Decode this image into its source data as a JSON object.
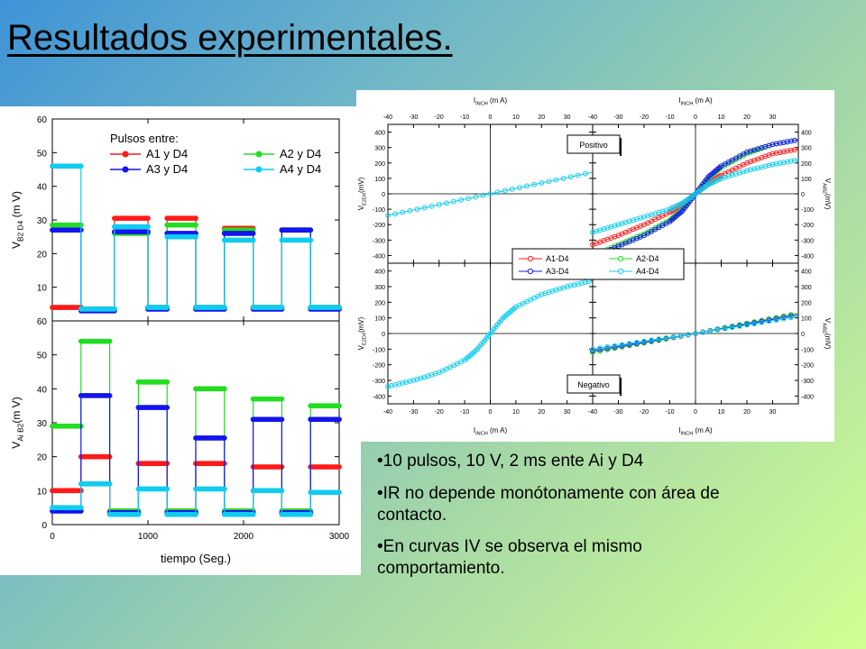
{
  "page": {
    "title": "Resultados experimentales."
  },
  "bullets": [
    "10 pulsos, 10 V, 2 ms ente Ai y D4",
    "IR no depende monótonamente con área de contacto.",
    "En curvas IV se observa el mismo comportamiento."
  ],
  "colors": {
    "A1": "#ff1a1a",
    "A2": "#22dd22",
    "A3": "#1414ee",
    "A4": "#11ccee"
  },
  "chart_data": [
    {
      "type": "line",
      "id": "top-time",
      "xlabel": "",
      "ylabel": "V_{B2 D4} (m V)",
      "ylabel_main": "V",
      "ylabel_sub": "B2 D4",
      "ylabel_tail": " (m V)",
      "xlim": [
        0,
        3000
      ],
      "ylim": [
        0,
        60
      ],
      "xticks": [
        0,
        1000,
        2000,
        3000
      ],
      "yticks": [
        0,
        10,
        20,
        30,
        40,
        50,
        60
      ],
      "ytick_labels": [
        "",
        "10",
        "20",
        "30",
        "40",
        "50",
        "60"
      ],
      "legend": {
        "title": "Pulsos entre:",
        "placement": "top-right",
        "entries": [
          "A1 y D4",
          "A2 y D4",
          "A3 y D4",
          "A4 y D4"
        ]
      },
      "pulses": [
        [
          300,
          600
        ],
        [
          600,
          900
        ],
        [
          900,
          1200
        ],
        [
          1200,
          1500
        ],
        [
          1500,
          1800
        ],
        [
          1800,
          2100
        ],
        [
          2100,
          2400
        ],
        [
          2400,
          2700
        ],
        [
          2700,
          3000
        ]
      ],
      "series": [
        {
          "name": "A1 y D4",
          "color": "#ff1a1a",
          "levels": [
            [
              0,
              300,
              4
            ],
            [
              300,
              650,
              3.5
            ],
            [
              650,
              1000,
              30.5
            ],
            [
              1000,
              1200,
              4
            ],
            [
              1200,
              1500,
              30.5
            ],
            [
              1500,
              1800,
              4
            ],
            [
              1800,
              2100,
              27.5
            ],
            [
              2100,
              2400,
              4
            ],
            [
              2400,
              2700,
              27
            ],
            [
              2700,
              3000,
              4
            ]
          ]
        },
        {
          "name": "A2 y D4",
          "color": "#22dd22",
          "levels": [
            [
              0,
              300,
              28.5
            ],
            [
              300,
              650,
              3.5
            ],
            [
              650,
              1000,
              26
            ],
            [
              1000,
              1200,
              4
            ],
            [
              1200,
              1500,
              28.5
            ],
            [
              1500,
              1800,
              4
            ],
            [
              1800,
              2100,
              27
            ],
            [
              2100,
              2400,
              4
            ],
            [
              2400,
              2700,
              27
            ],
            [
              2700,
              3000,
              4
            ]
          ]
        },
        {
          "name": "A3 y D4",
          "color": "#1414ee",
          "levels": [
            [
              0,
              300,
              27
            ],
            [
              300,
              650,
              3
            ],
            [
              650,
              1000,
              26.5
            ],
            [
              1000,
              1200,
              3.5
            ],
            [
              1200,
              1500,
              26
            ],
            [
              1500,
              1800,
              3.5
            ],
            [
              1800,
              2100,
              26
            ],
            [
              2100,
              2400,
              3.5
            ],
            [
              2400,
              2700,
              27
            ],
            [
              2700,
              3000,
              3.5
            ]
          ]
        },
        {
          "name": "A4 y D4",
          "color": "#11ccee",
          "levels": [
            [
              0,
              300,
              46
            ],
            [
              300,
              650,
              3.5
            ],
            [
              650,
              1000,
              28
            ],
            [
              1000,
              1200,
              4
            ],
            [
              1200,
              1500,
              25
            ],
            [
              1500,
              1800,
              4
            ],
            [
              1800,
              2100,
              24
            ],
            [
              2100,
              2400,
              4
            ],
            [
              2400,
              2700,
              24
            ],
            [
              2700,
              3000,
              4
            ]
          ]
        }
      ]
    },
    {
      "type": "line",
      "id": "bottom-time",
      "xlabel": "tiempo (Seg.)",
      "ylabel": "V_{Ai B2} (m V)",
      "ylabel_main": "V",
      "ylabel_sub": "Ai B2",
      "ylabel_tail": "(m V)",
      "xlim": [
        0,
        3000
      ],
      "ylim": [
        0,
        60
      ],
      "xticks": [
        0,
        1000,
        2000,
        3000
      ],
      "yticks": [
        0,
        10,
        20,
        30,
        40,
        50,
        60
      ],
      "ytick_labels": [
        "0",
        "10",
        "20",
        "30",
        "40",
        "50",
        "60"
      ],
      "series": [
        {
          "name": "A1 y D4",
          "color": "#ff1a1a",
          "levels": [
            [
              0,
              300,
              10
            ],
            [
              300,
              600,
              20
            ],
            [
              600,
              900,
              4
            ],
            [
              900,
              1200,
              18
            ],
            [
              1200,
              1500,
              4
            ],
            [
              1500,
              1800,
              18
            ],
            [
              1800,
              2100,
              4
            ],
            [
              2100,
              2400,
              17
            ],
            [
              2400,
              2700,
              4
            ],
            [
              2700,
              3000,
              17
            ]
          ]
        },
        {
          "name": "A2 y D4",
          "color": "#22dd22",
          "levels": [
            [
              0,
              300,
              29
            ],
            [
              300,
              600,
              54
            ],
            [
              600,
              900,
              4
            ],
            [
              900,
              1200,
              42
            ],
            [
              1200,
              1500,
              4
            ],
            [
              1500,
              1800,
              40
            ],
            [
              1800,
              2100,
              4
            ],
            [
              2100,
              2400,
              37
            ],
            [
              2400,
              2700,
              4
            ],
            [
              2700,
              3000,
              35
            ]
          ]
        },
        {
          "name": "A3 y D4",
          "color": "#1414ee",
          "levels": [
            [
              0,
              300,
              4
            ],
            [
              300,
              600,
              38
            ],
            [
              600,
              900,
              3.5
            ],
            [
              900,
              1200,
              34.5
            ],
            [
              1200,
              1500,
              3.5
            ],
            [
              1500,
              1800,
              25.5
            ],
            [
              1800,
              2100,
              3.5
            ],
            [
              2100,
              2400,
              31
            ],
            [
              2400,
              2700,
              3.5
            ],
            [
              2700,
              3000,
              31
            ]
          ]
        },
        {
          "name": "A4 y D4",
          "color": "#11ccee",
          "levels": [
            [
              0,
              300,
              5
            ],
            [
              300,
              600,
              12
            ],
            [
              600,
              900,
              3
            ],
            [
              900,
              1200,
              10.5
            ],
            [
              1200,
              1500,
              3
            ],
            [
              1500,
              1800,
              10.5
            ],
            [
              1800,
              2100,
              3
            ],
            [
              2100,
              2400,
              10
            ],
            [
              2400,
              2700,
              3
            ],
            [
              2700,
              3000,
              9.5
            ]
          ]
        }
      ]
    },
    {
      "type": "scatter",
      "id": "iv-curves",
      "top_xlabel": "I",
      "top_xlabel_sub": "INCH",
      "top_xlabel_tail": "(m A)",
      "bottom_xlabel": "I",
      "bottom_xlabel_sub": "INCH",
      "bottom_xlabel_tail": "(m A)",
      "left_ylabels": [
        "V_{E2D4}(mV)",
        "V_{E2D4}(mV)"
      ],
      "right_ylabels": [
        "V_{AiB2}(mV)",
        "V_{AiB2}(mV)"
      ],
      "left_ylabel_main": "V",
      "left_ylabel_sub": "E2D4",
      "left_ylabel_tail": "(mV)",
      "right_ylabel_main": "V",
      "right_ylabel_sub": "AiB2",
      "right_ylabel_tail": "(mV)",
      "xlim": [
        -40,
        40
      ],
      "xticks": [
        -40,
        -30,
        -20,
        -10,
        0,
        10,
        20,
        30
      ],
      "ylim": [
        -450,
        450
      ],
      "yticks": [
        -400,
        -300,
        -200,
        -100,
        0,
        100,
        200,
        300,
        400
      ],
      "labels": {
        "positive": "Positivo",
        "negative": "Negativo"
      },
      "legend": {
        "placement": "center",
        "entries": [
          "A1-D4",
          "A2-D4",
          "A3-D4",
          "A4-D4"
        ]
      },
      "panels": {
        "top_left": {
          "series": [
            {
              "name": "A4-D4",
              "color": "#11ccee",
              "x": [
                -40,
                -20,
                0,
                20,
                40
              ],
              "y": [
                -140,
                -70,
                0,
                70,
                140
              ]
            }
          ]
        },
        "top_right": {
          "series": [
            {
              "name": "A1-D4",
              "color": "#ff1a1a",
              "x": [
                -40,
                -30,
                -20,
                -10,
                -5,
                0,
                5,
                10,
                20,
                30,
                40
              ],
              "y": [
                -330,
                -270,
                -200,
                -120,
                -70,
                0,
                70,
                120,
                200,
                260,
                290
              ]
            },
            {
              "name": "A2-D4",
              "color": "#22dd22",
              "x": [
                -40,
                -30,
                -20,
                -10,
                -5,
                0,
                5,
                10,
                20,
                30,
                40
              ],
              "y": [
                -400,
                -330,
                -260,
                -170,
                -100,
                0,
                100,
                170,
                260,
                320,
                350
              ]
            },
            {
              "name": "A3-D4",
              "color": "#1414ee",
              "x": [
                -40,
                -30,
                -20,
                -10,
                -5,
                0,
                5,
                10,
                20,
                30,
                40
              ],
              "y": [
                -410,
                -340,
                -270,
                -180,
                -110,
                0,
                110,
                180,
                270,
                320,
                350
              ]
            },
            {
              "name": "A4-D4",
              "color": "#11ccee",
              "x": [
                -40,
                -30,
                -20,
                -10,
                -5,
                0,
                5,
                10,
                20,
                30,
                40
              ],
              "y": [
                -250,
                -200,
                -150,
                -100,
                -60,
                0,
                60,
                100,
                150,
                190,
                220
              ]
            }
          ]
        },
        "bottom_left": {
          "series": [
            {
              "name": "A4-D4",
              "color": "#11ccee",
              "x": [
                -40,
                -30,
                -20,
                -10,
                -5,
                0,
                5,
                10,
                20,
                30,
                40
              ],
              "y": [
                -340,
                -300,
                -250,
                -170,
                -100,
                0,
                100,
                170,
                250,
                300,
                340
              ]
            }
          ]
        },
        "bottom_right": {
          "series": [
            {
              "name": "A1-D4",
              "color": "#ff1a1a",
              "x": [
                -40,
                -20,
                0,
                20,
                40
              ],
              "y": [
                -120,
                -60,
                0,
                65,
                130
              ]
            },
            {
              "name": "A2-D4",
              "color": "#22dd22",
              "x": [
                -40,
                -20,
                0,
                20,
                40
              ],
              "y": [
                -120,
                -60,
                0,
                65,
                130
              ]
            },
            {
              "name": "A3-D4",
              "color": "#1414ee",
              "x": [
                -40,
                -20,
                0,
                20,
                40
              ],
              "y": [
                -110,
                -55,
                0,
                60,
                120
              ]
            },
            {
              "name": "A4-D4",
              "color": "#11ccee",
              "x": [
                -40,
                -20,
                0,
                20,
                40
              ],
              "y": [
                -100,
                -50,
                0,
                55,
                110
              ]
            }
          ]
        }
      }
    }
  ]
}
